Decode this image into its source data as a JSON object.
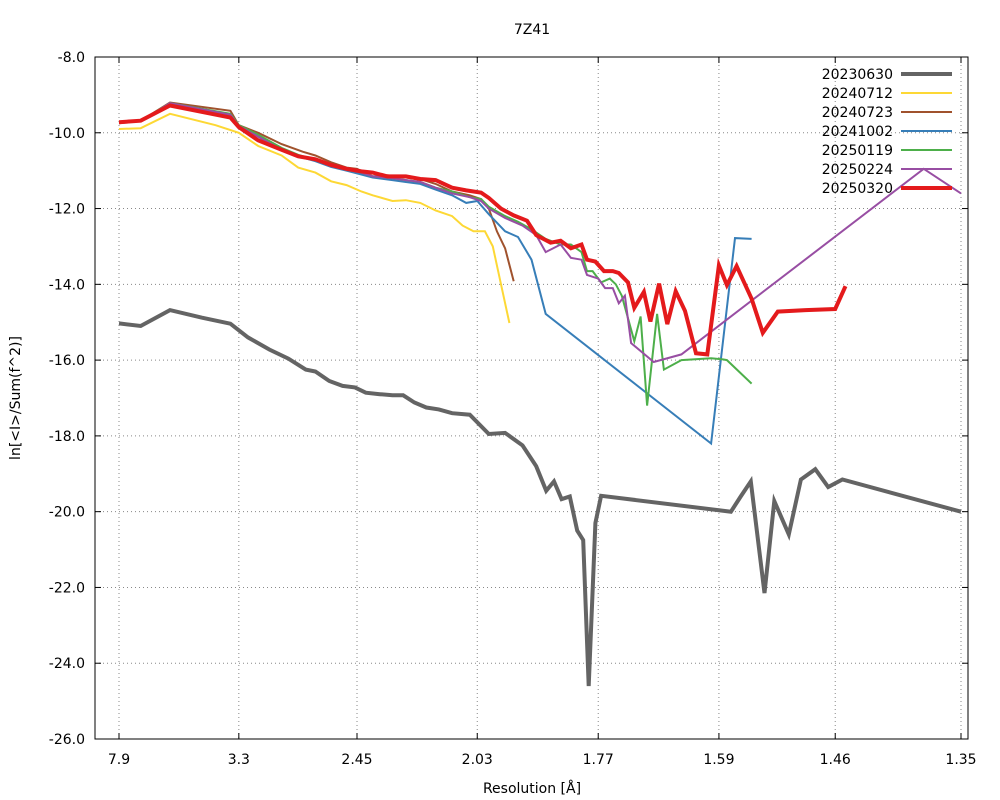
{
  "chart_data": {
    "type": "line",
    "title": "7Z41",
    "xlabel": "Resolution [Å]",
    "ylabel": "ln[<I>/Sum(f^2)]",
    "x_scale": "reciprocal-squared",
    "xlim": [
      7.9,
      1.35
    ],
    "ylim": [
      -26.0,
      -8.0
    ],
    "grid": true,
    "legend_position": "top-right",
    "x_ticks": [
      {
        "value": 7.9,
        "label": "7.9"
      },
      {
        "value": 3.3,
        "label": "3.3"
      },
      {
        "value": 2.45,
        "label": "2.45"
      },
      {
        "value": 2.03,
        "label": "2.03"
      },
      {
        "value": 1.77,
        "label": "1.77"
      },
      {
        "value": 1.59,
        "label": "1.59"
      },
      {
        "value": 1.46,
        "label": "1.46"
      },
      {
        "value": 1.35,
        "label": "1.35"
      }
    ],
    "y_ticks": [
      {
        "value": -8.0,
        "label": "-8.0"
      },
      {
        "value": -10.0,
        "label": "-10.0"
      },
      {
        "value": -12.0,
        "label": "-12.0"
      },
      {
        "value": -14.0,
        "label": "-14.0"
      },
      {
        "value": -16.0,
        "label": "-16.0"
      },
      {
        "value": -18.0,
        "label": "-18.0"
      },
      {
        "value": -20.0,
        "label": "-20.0"
      },
      {
        "value": -22.0,
        "label": "-22.0"
      },
      {
        "value": -24.0,
        "label": "-24.0"
      },
      {
        "value": -26.0,
        "label": "-26.0"
      }
    ],
    "series": [
      {
        "name": "20230630",
        "color": "#646464",
        "width": 4,
        "points": [
          [
            7.9,
            -15.03
          ],
          [
            5.8,
            -15.1
          ],
          [
            4.55,
            -14.68
          ],
          [
            3.82,
            -14.88
          ],
          [
            3.4,
            -15.04
          ],
          [
            3.2,
            -15.4
          ],
          [
            3.0,
            -15.72
          ],
          [
            2.85,
            -15.96
          ],
          [
            2.73,
            -16.25
          ],
          [
            2.67,
            -16.3
          ],
          [
            2.59,
            -16.55
          ],
          [
            2.52,
            -16.68
          ],
          [
            2.46,
            -16.72
          ],
          [
            2.41,
            -16.86
          ],
          [
            2.35,
            -16.9
          ],
          [
            2.3,
            -16.93
          ],
          [
            2.26,
            -16.93
          ],
          [
            2.22,
            -17.12
          ],
          [
            2.18,
            -17.25
          ],
          [
            2.14,
            -17.3
          ],
          [
            2.1,
            -17.4
          ],
          [
            2.05,
            -17.44
          ],
          [
            2.0,
            -17.95
          ],
          [
            1.96,
            -17.92
          ],
          [
            1.92,
            -18.25
          ],
          [
            1.89,
            -18.8
          ],
          [
            1.869,
            -19.45
          ],
          [
            1.853,
            -19.2
          ],
          [
            1.838,
            -19.67
          ],
          [
            1.822,
            -19.6
          ],
          [
            1.808,
            -20.5
          ],
          [
            1.797,
            -20.75
          ],
          [
            1.787,
            -24.6
          ],
          [
            1.775,
            -20.3
          ],
          [
            1.765,
            -19.58
          ],
          [
            1.575,
            -20.0
          ],
          [
            1.563,
            -19.6
          ],
          [
            1.551,
            -19.2
          ],
          [
            1.535,
            -22.15
          ],
          [
            1.524,
            -19.72
          ],
          [
            1.508,
            -20.6
          ],
          [
            1.495,
            -19.15
          ],
          [
            1.48,
            -18.88
          ],
          [
            1.467,
            -19.35
          ],
          [
            1.453,
            -19.15
          ],
          [
            1.35,
            -20.0
          ]
        ]
      },
      {
        "name": "20240712",
        "color": "#fdd835",
        "width": 2,
        "points": [
          [
            7.9,
            -9.9
          ],
          [
            5.8,
            -9.88
          ],
          [
            4.55,
            -9.5
          ],
          [
            3.6,
            -9.8
          ],
          [
            3.3,
            -10.0
          ],
          [
            3.1,
            -10.35
          ],
          [
            2.9,
            -10.6
          ],
          [
            2.78,
            -10.92
          ],
          [
            2.67,
            -11.05
          ],
          [
            2.58,
            -11.28
          ],
          [
            2.5,
            -11.38
          ],
          [
            2.43,
            -11.55
          ],
          [
            2.38,
            -11.65
          ],
          [
            2.3,
            -11.8
          ],
          [
            2.25,
            -11.78
          ],
          [
            2.2,
            -11.85
          ],
          [
            2.15,
            -12.05
          ],
          [
            2.1,
            -12.2
          ],
          [
            2.07,
            -12.45
          ],
          [
            2.04,
            -12.6
          ],
          [
            2.01,
            -12.6
          ],
          [
            1.99,
            -13.0
          ],
          [
            1.97,
            -14.0
          ],
          [
            1.95,
            -15.02
          ]
        ]
      },
      {
        "name": "20240723",
        "color": "#a0522d",
        "width": 2,
        "points": [
          [
            7.9,
            -9.75
          ],
          [
            5.8,
            -9.68
          ],
          [
            4.55,
            -9.2
          ],
          [
            3.4,
            -9.42
          ],
          [
            3.3,
            -9.8
          ],
          [
            3.1,
            -10.0
          ],
          [
            2.9,
            -10.3
          ],
          [
            2.75,
            -10.5
          ],
          [
            2.67,
            -10.6
          ],
          [
            2.58,
            -10.78
          ],
          [
            2.5,
            -10.92
          ],
          [
            2.45,
            -10.95
          ],
          [
            2.38,
            -11.15
          ],
          [
            2.32,
            -11.12
          ],
          [
            2.25,
            -11.18
          ],
          [
            2.2,
            -11.22
          ],
          [
            2.15,
            -11.35
          ],
          [
            2.1,
            -11.55
          ],
          [
            2.05,
            -11.65
          ],
          [
            2.02,
            -11.75
          ],
          [
            2.0,
            -12.0
          ],
          [
            1.98,
            -12.6
          ],
          [
            1.96,
            -13.05
          ],
          [
            1.94,
            -13.92
          ]
        ]
      },
      {
        "name": "20241002",
        "color": "#377eb8",
        "width": 2,
        "points": [
          [
            7.9,
            -9.72
          ],
          [
            5.8,
            -9.7
          ],
          [
            4.55,
            -9.22
          ],
          [
            3.4,
            -9.55
          ],
          [
            3.3,
            -9.8
          ],
          [
            3.1,
            -10.1
          ],
          [
            2.9,
            -10.45
          ],
          [
            2.78,
            -10.62
          ],
          [
            2.67,
            -10.75
          ],
          [
            2.58,
            -10.9
          ],
          [
            2.5,
            -11.0
          ],
          [
            2.43,
            -11.1
          ],
          [
            2.38,
            -11.18
          ],
          [
            2.3,
            -11.25
          ],
          [
            2.25,
            -11.3
          ],
          [
            2.2,
            -11.35
          ],
          [
            2.15,
            -11.5
          ],
          [
            2.1,
            -11.65
          ],
          [
            2.06,
            -11.85
          ],
          [
            2.03,
            -11.8
          ],
          [
            2.0,
            -12.15
          ],
          [
            1.96,
            -12.6
          ],
          [
            1.93,
            -12.75
          ],
          [
            1.9,
            -13.35
          ],
          [
            1.87,
            -14.78
          ],
          [
            1.6,
            -18.2
          ],
          [
            1.57,
            -12.78
          ],
          [
            1.55,
            -12.8
          ]
        ]
      },
      {
        "name": "20250119",
        "color": "#4daf4a",
        "width": 2,
        "points": [
          [
            7.9,
            -9.72
          ],
          [
            5.8,
            -9.68
          ],
          [
            4.55,
            -9.22
          ],
          [
            3.4,
            -9.5
          ],
          [
            3.3,
            -9.8
          ],
          [
            3.1,
            -10.05
          ],
          [
            2.9,
            -10.4
          ],
          [
            2.78,
            -10.58
          ],
          [
            2.67,
            -10.72
          ],
          [
            2.58,
            -10.85
          ],
          [
            2.5,
            -10.98
          ],
          [
            2.43,
            -11.05
          ],
          [
            2.38,
            -11.15
          ],
          [
            2.3,
            -11.2
          ],
          [
            2.25,
            -11.25
          ],
          [
            2.2,
            -11.3
          ],
          [
            2.15,
            -11.45
          ],
          [
            2.1,
            -11.55
          ],
          [
            2.05,
            -11.7
          ],
          [
            2.02,
            -11.75
          ],
          [
            2.0,
            -11.95
          ],
          [
            1.96,
            -12.2
          ],
          [
            1.93,
            -12.35
          ],
          [
            1.9,
            -12.55
          ],
          [
            1.87,
            -12.8
          ],
          [
            1.84,
            -12.95
          ],
          [
            1.82,
            -12.95
          ],
          [
            1.8,
            -13.15
          ],
          [
            1.79,
            -13.65
          ],
          [
            1.78,
            -13.65
          ],
          [
            1.765,
            -13.95
          ],
          [
            1.75,
            -13.85
          ],
          [
            1.74,
            -14.0
          ],
          [
            1.73,
            -14.3
          ],
          [
            1.71,
            -15.5
          ],
          [
            1.7,
            -14.85
          ],
          [
            1.69,
            -17.2
          ],
          [
            1.675,
            -14.78
          ],
          [
            1.665,
            -16.25
          ],
          [
            1.64,
            -16.0
          ],
          [
            1.6,
            -15.95
          ],
          [
            1.585,
            -15.98
          ],
          [
            1.58,
            -16.0
          ],
          [
            1.55,
            -16.62
          ]
        ]
      },
      {
        "name": "20250224",
        "color": "#984ea3",
        "width": 2,
        "points": [
          [
            7.9,
            -9.72
          ],
          [
            5.8,
            -9.7
          ],
          [
            4.55,
            -9.22
          ],
          [
            3.4,
            -9.52
          ],
          [
            3.3,
            -9.82
          ],
          [
            3.1,
            -10.1
          ],
          [
            2.9,
            -10.45
          ],
          [
            2.78,
            -10.6
          ],
          [
            2.67,
            -10.72
          ],
          [
            2.58,
            -10.88
          ],
          [
            2.5,
            -10.98
          ],
          [
            2.43,
            -11.05
          ],
          [
            2.38,
            -11.15
          ],
          [
            2.3,
            -11.2
          ],
          [
            2.25,
            -11.25
          ],
          [
            2.2,
            -11.3
          ],
          [
            2.15,
            -11.45
          ],
          [
            2.1,
            -11.6
          ],
          [
            2.05,
            -11.7
          ],
          [
            2.02,
            -11.8
          ],
          [
            2.0,
            -12.0
          ],
          [
            1.96,
            -12.25
          ],
          [
            1.92,
            -12.45
          ],
          [
            1.89,
            -12.7
          ],
          [
            1.87,
            -13.15
          ],
          [
            1.84,
            -12.95
          ],
          [
            1.82,
            -13.3
          ],
          [
            1.8,
            -13.35
          ],
          [
            1.79,
            -13.75
          ],
          [
            1.77,
            -13.85
          ],
          [
            1.758,
            -14.1
          ],
          [
            1.745,
            -14.1
          ],
          [
            1.735,
            -14.5
          ],
          [
            1.725,
            -14.3
          ],
          [
            1.715,
            -15.55
          ],
          [
            1.68,
            -16.05
          ],
          [
            1.64,
            -15.85
          ],
          [
            1.38,
            -10.95
          ],
          [
            1.35,
            -11.6
          ]
        ]
      },
      {
        "name": "20250320",
        "color": "#e41a1c",
        "width": 4,
        "points": [
          [
            7.9,
            -9.72
          ],
          [
            5.8,
            -9.68
          ],
          [
            4.55,
            -9.28
          ],
          [
            3.4,
            -9.6
          ],
          [
            3.3,
            -9.85
          ],
          [
            3.1,
            -10.2
          ],
          [
            2.9,
            -10.45
          ],
          [
            2.78,
            -10.62
          ],
          [
            2.67,
            -10.7
          ],
          [
            2.58,
            -10.85
          ],
          [
            2.5,
            -10.95
          ],
          [
            2.43,
            -11.02
          ],
          [
            2.38,
            -11.05
          ],
          [
            2.32,
            -11.15
          ],
          [
            2.25,
            -11.15
          ],
          [
            2.2,
            -11.22
          ],
          [
            2.15,
            -11.25
          ],
          [
            2.1,
            -11.45
          ],
          [
            2.06,
            -11.52
          ],
          [
            2.02,
            -11.58
          ],
          [
            2.0,
            -11.72
          ],
          [
            1.97,
            -12.0
          ],
          [
            1.94,
            -12.18
          ],
          [
            1.91,
            -12.32
          ],
          [
            1.89,
            -12.7
          ],
          [
            1.86,
            -12.9
          ],
          [
            1.84,
            -12.85
          ],
          [
            1.82,
            -13.05
          ],
          [
            1.8,
            -12.95
          ],
          [
            1.79,
            -13.35
          ],
          [
            1.775,
            -13.4
          ],
          [
            1.76,
            -13.65
          ],
          [
            1.745,
            -13.65
          ],
          [
            1.735,
            -13.7
          ],
          [
            1.72,
            -13.95
          ],
          [
            1.71,
            -14.62
          ],
          [
            1.695,
            -14.2
          ],
          [
            1.685,
            -14.98
          ],
          [
            1.672,
            -13.98
          ],
          [
            1.66,
            -15.05
          ],
          [
            1.648,
            -14.18
          ],
          [
            1.635,
            -14.7
          ],
          [
            1.62,
            -15.82
          ],
          [
            1.605,
            -15.85
          ],
          [
            1.59,
            -13.5
          ],
          [
            1.58,
            -14.02
          ],
          [
            1.568,
            -13.52
          ],
          [
            1.55,
            -14.38
          ],
          [
            1.537,
            -15.28
          ],
          [
            1.52,
            -14.72
          ],
          [
            1.49,
            -14.68
          ],
          [
            1.46,
            -14.65
          ],
          [
            1.45,
            -14.05
          ]
        ]
      }
    ]
  }
}
